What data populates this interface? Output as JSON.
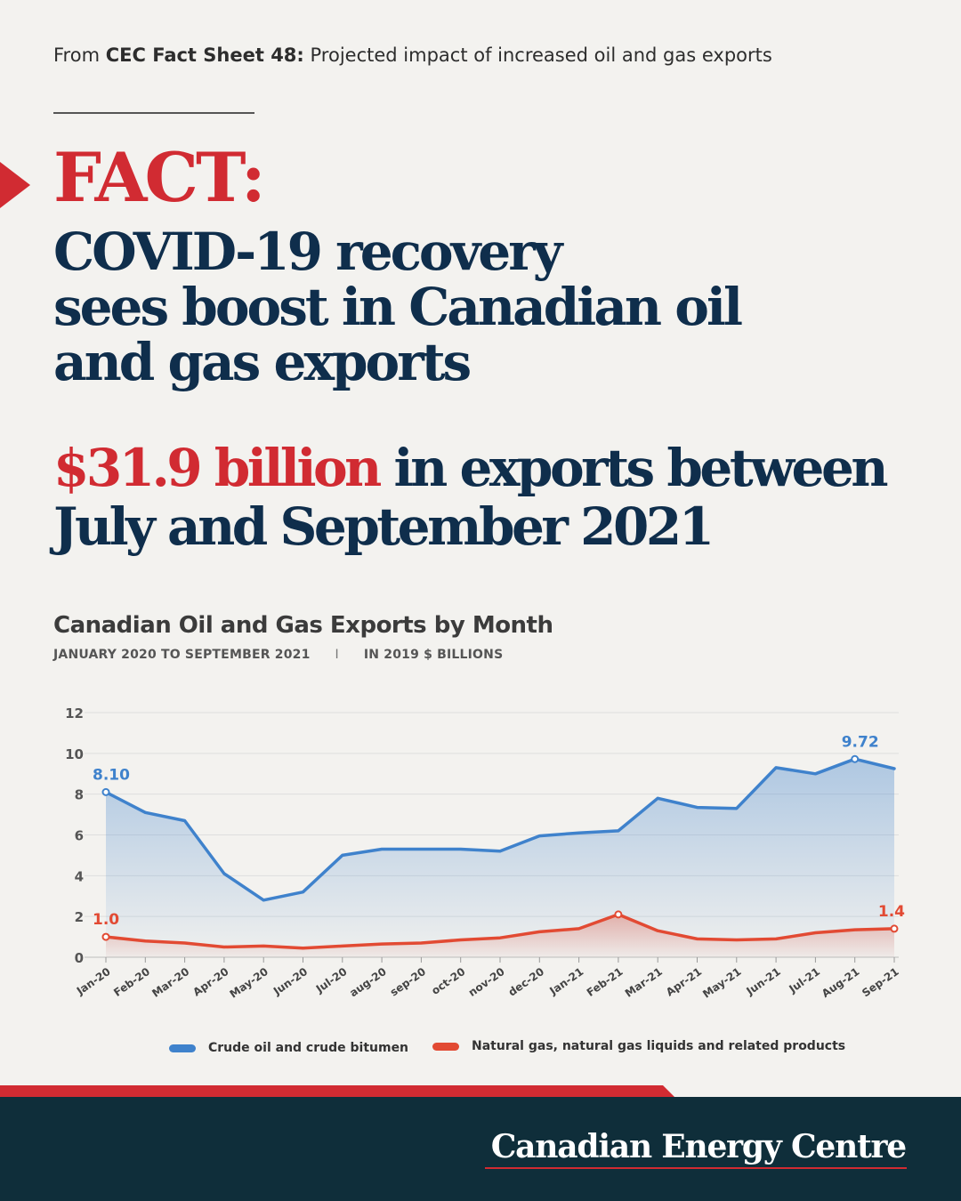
{
  "source": {
    "prefix": "From ",
    "name": "CEC Fact Sheet 48:",
    "rest": " Projected impact of increased oil and gas exports"
  },
  "fact_label": "FACT:",
  "headline_lines": [
    "COVID-19 recovery",
    "sees boost in Canadian oil",
    "and gas exports"
  ],
  "stat": {
    "amount": "$31.9 billion",
    "line1_rest": " in exports between",
    "line2": "July and September 2021"
  },
  "chart_title": "Canadian Oil and Gas Exports by Month",
  "chart_subtitle_left": "JANUARY 2020 TO SEPTEMBER 2021",
  "chart_subtitle_sep": "I",
  "chart_subtitle_right": "IN 2019 $ BILLIONS",
  "brand": "Canadian Energy Centre",
  "colors": {
    "red": "#d12b32",
    "navy": "#0f2e4c",
    "crude": "#3f82cc",
    "gas": "#e24a33",
    "footer": "#0f2e3a"
  },
  "chart_data": {
    "type": "line",
    "title": "Canadian Oil and Gas Exports by Month",
    "subtitle": "JANUARY 2020 TO SEPTEMBER 2021 | IN 2019 $ BILLIONS",
    "categories": [
      "Jan-20",
      "Feb-20",
      "Mar-20",
      "Apr-20",
      "May-20",
      "Jun-20",
      "Jul-20",
      "aug-20",
      "sep-20",
      "oct-20",
      "nov-20",
      "dec-20",
      "Jan-21",
      "Feb-21",
      "Mar-21",
      "Apr-21",
      "May-21",
      "Jun-21",
      "Jul-21",
      "Aug-21",
      "Sep-21"
    ],
    "yticks": [
      0,
      2,
      4,
      6,
      8,
      10,
      12
    ],
    "ylim": [
      0,
      12
    ],
    "grid": true,
    "legend_position": "bottom",
    "series": [
      {
        "name": "Crude oil and crude bitumen",
        "color": "#3f82cc",
        "values": [
          8.1,
          7.1,
          6.7,
          4.1,
          2.8,
          3.2,
          5.0,
          5.3,
          5.3,
          5.3,
          5.2,
          5.95,
          6.1,
          6.2,
          7.8,
          7.35,
          7.3,
          9.3,
          9.0,
          9.72,
          9.25
        ],
        "labels": [
          {
            "index": 0,
            "text": "8.10"
          },
          {
            "index": 19,
            "text": "9.72"
          }
        ]
      },
      {
        "name": "Natural gas, natural gas liquids and related products",
        "color": "#e24a33",
        "values": [
          1.0,
          0.8,
          0.7,
          0.5,
          0.55,
          0.45,
          0.55,
          0.65,
          0.7,
          0.85,
          0.95,
          1.25,
          1.4,
          2.1,
          1.3,
          0.9,
          0.85,
          0.9,
          1.2,
          1.35,
          1.4
        ],
        "labels": [
          {
            "index": 0,
            "text": "1.0"
          },
          {
            "index": 20,
            "text": "1.4"
          }
        ]
      }
    ]
  }
}
